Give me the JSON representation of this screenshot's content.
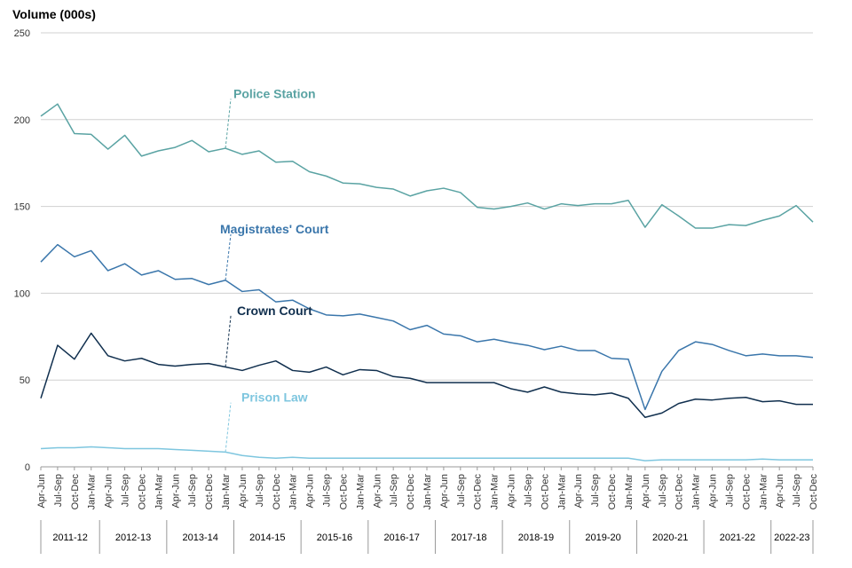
{
  "chart_data": {
    "type": "line",
    "ylabel": "Volume (000s)",
    "ylim": [
      0,
      250
    ],
    "yticks": [
      0,
      50,
      100,
      150,
      200,
      250
    ],
    "grid": true,
    "x": [
      "Apr-Jun",
      "Jul-Sep",
      "Oct-Dec",
      "Jan-Mar",
      "Apr-Jun",
      "Jul-Sep",
      "Oct-Dec",
      "Jan-Mar",
      "Apr-Jun",
      "Jul-Sep",
      "Oct-Dec",
      "Jan-Mar",
      "Apr-Jun",
      "Jul-Sep",
      "Oct-Dec",
      "Jan-Mar",
      "Apr-Jun",
      "Jul-Sep",
      "Oct-Dec",
      "Jan-Mar",
      "Apr-Jun",
      "Jul-Sep",
      "Oct-Dec",
      "Jan-Mar",
      "Apr-Jun",
      "Jul-Sep",
      "Oct-Dec",
      "Jan-Mar",
      "Apr-Jun",
      "Jul-Sep",
      "Oct-Dec",
      "Jan-Mar",
      "Apr-Jun",
      "Jul-Sep",
      "Oct-Dec",
      "Jan-Mar",
      "Apr-Jun",
      "Jul-Sep",
      "Oct-Dec",
      "Jan-Mar",
      "Apr-Jun",
      "Jul-Sep",
      "Oct-Dec",
      "Jan-Mar",
      "Apr-Jun",
      "Jul-Sep",
      "Oct-Dec"
    ],
    "years": [
      {
        "label": "2011-12",
        "quarters": 4
      },
      {
        "label": "2012-13",
        "quarters": 4
      },
      {
        "label": "2013-14",
        "quarters": 4
      },
      {
        "label": "2014-15",
        "quarters": 4
      },
      {
        "label": "2015-16",
        "quarters": 4
      },
      {
        "label": "2016-17",
        "quarters": 4
      },
      {
        "label": "2017-18",
        "quarters": 4
      },
      {
        "label": "2018-19",
        "quarters": 4
      },
      {
        "label": "2019-20",
        "quarters": 4
      },
      {
        "label": "2020-21",
        "quarters": 4
      },
      {
        "label": "2021-22",
        "quarters": 4
      },
      {
        "label": "2022-23",
        "quarters": 3
      }
    ],
    "series": [
      {
        "name": "Police Station",
        "color": "#5aa3a3",
        "label_anchor_index": 11,
        "label_value": 213,
        "values": [
          202,
          209,
          192,
          191.5,
          183,
          191,
          179,
          182,
          184,
          188,
          181.5,
          183.5,
          180,
          182,
          175.5,
          176,
          170,
          167.5,
          163.5,
          163,
          161,
          160,
          156,
          159,
          160.5,
          158,
          149.5,
          148.5,
          150,
          152,
          148.5,
          151.5,
          150.5,
          151.5,
          151.5,
          153.5,
          138,
          151,
          144.5,
          137.5,
          137.5,
          139.5,
          139,
          142,
          144.5,
          150.5,
          141
        ]
      },
      {
        "name": "Magistrates' Court",
        "color": "#3a76ab",
        "label_anchor_index": 11,
        "label_value": 135,
        "values": [
          118,
          128,
          121,
          124.5,
          113,
          117,
          110.5,
          113,
          108,
          108.5,
          105,
          107.5,
          101,
          102,
          95,
          96,
          91,
          87.5,
          87,
          88,
          86,
          84,
          79,
          81.5,
          76.5,
          75.5,
          72,
          73.5,
          71.5,
          70,
          67.5,
          69.5,
          67,
          67,
          62.5,
          62,
          33,
          55,
          67,
          72,
          70.5,
          67,
          64,
          65,
          64,
          64,
          63
        ]
      },
      {
        "name": "Crown Court",
        "color": "#102f4e",
        "label_anchor_index": 11,
        "label_value": 88,
        "values": [
          39.5,
          70,
          62,
          77,
          64,
          61,
          62.5,
          59,
          58,
          59,
          59.5,
          57.5,
          55.5,
          58.5,
          61,
          55.5,
          54.5,
          57.5,
          53,
          56,
          55.5,
          52,
          51,
          48.5,
          48.5,
          48.5,
          48.5,
          48.5,
          45,
          43,
          46,
          43,
          42,
          41.5,
          42.5,
          39.5,
          28.5,
          31,
          36.5,
          39,
          38.5,
          39.5,
          40,
          37.5,
          38,
          36,
          36
        ]
      },
      {
        "name": "Prison Law",
        "color": "#7ec6df",
        "label_anchor_index": 11,
        "label_value": 38,
        "values": [
          10.5,
          11,
          11,
          11.5,
          11,
          10.5,
          10.5,
          10.5,
          10,
          9.5,
          9,
          8.5,
          6.5,
          5.5,
          5,
          5.5,
          5,
          5,
          5,
          5,
          5,
          5,
          5,
          5,
          5,
          5,
          5,
          5,
          5,
          5,
          5,
          5,
          5,
          5,
          5,
          5,
          3.5,
          4,
          4,
          4,
          4,
          4,
          4,
          4.5,
          4,
          4,
          4
        ]
      }
    ]
  }
}
